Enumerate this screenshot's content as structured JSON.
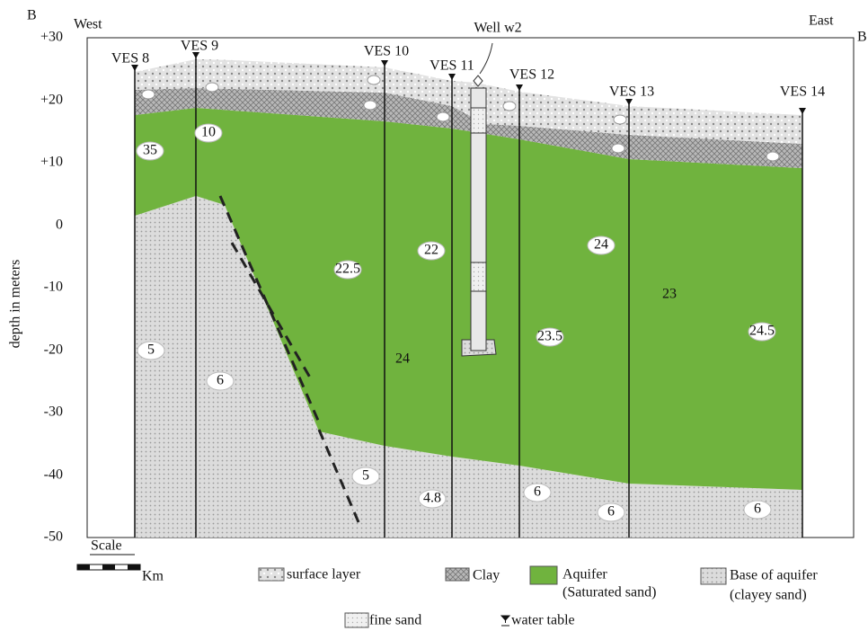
{
  "section": {
    "left_letter": "B",
    "right_letter": "B",
    "west": "West",
    "east": "East"
  },
  "y_axis": {
    "title": "depth in meters",
    "ticks": [
      "+30",
      "+20",
      "+10",
      "0",
      "-10",
      "-20",
      "-30",
      "-40",
      "-50"
    ]
  },
  "ves": [
    "VES 8",
    "VES 9",
    "VES 10",
    "VES 11",
    "VES 12",
    "VES 13",
    "VES 14"
  ],
  "well": "Well w2",
  "resistivity": [
    35,
    10,
    5,
    6,
    22.5,
    22,
    24,
    24,
    23,
    23.5,
    24.5,
    5,
    4.8,
    6,
    6,
    6
  ],
  "legend": {
    "scale": "Scale",
    "unit": "Km",
    "surface": "surface layer",
    "clay": "Clay",
    "aquifer": [
      "Aquifer",
      "(Saturated sand)"
    ],
    "base": [
      "Base of aquifer",
      "(clayey sand)"
    ],
    "fine_sand": "fine sand",
    "water_table": "water table"
  }
}
